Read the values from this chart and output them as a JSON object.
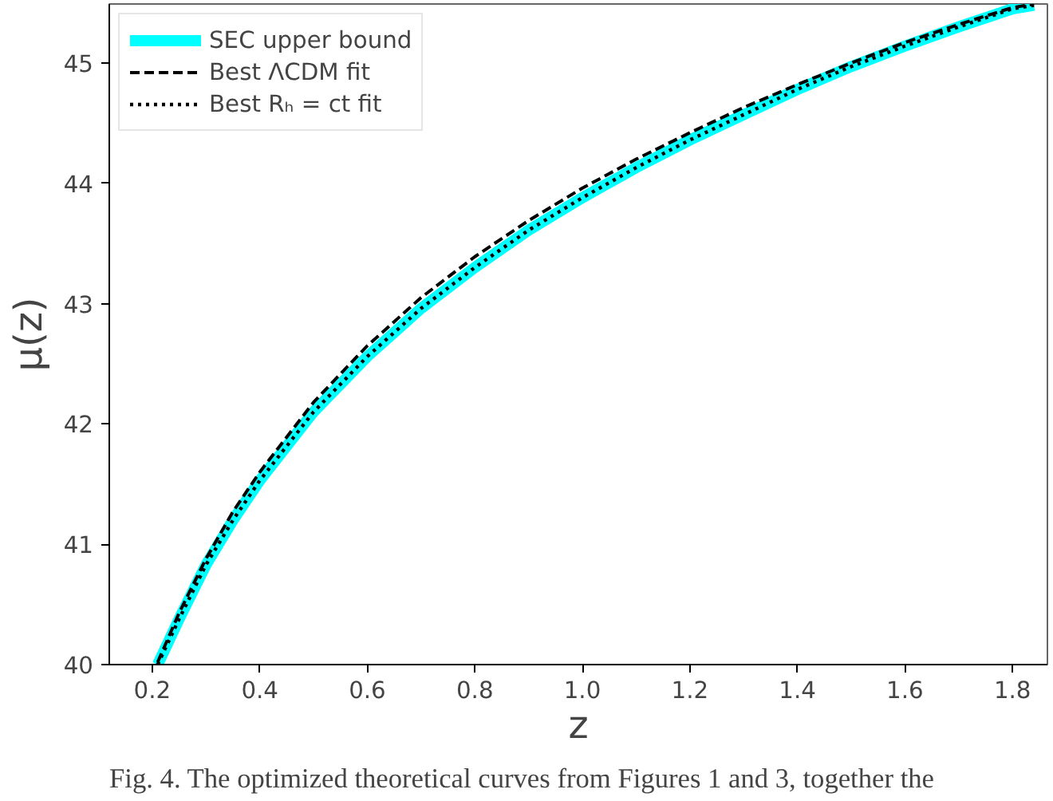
{
  "chart_data": {
    "type": "line",
    "xlabel": "z",
    "ylabel": "μ(z)",
    "xlim": [
      0.12,
      1.865
    ],
    "ylim": [
      40,
      45.49
    ],
    "xticks": [
      0.2,
      0.4,
      0.6,
      0.8,
      {
        "value": 1,
        "label": "1.0"
      },
      1.2,
      1.4,
      1.6,
      1.8
    ],
    "yticks": [
      40,
      41,
      42,
      43,
      44,
      45
    ],
    "grid": false,
    "legend": "top left",
    "annotations": [
      "Fig. 4. The optimized theoretical curves from Figures 1 and 3, together the"
    ],
    "series": [
      {
        "name": "SEC upper bound",
        "color": "#00ffff",
        "line_style": "solid",
        "x": [
          0.21,
          0.25,
          0.3,
          0.35,
          0.4,
          0.5,
          0.6,
          0.7,
          0.8,
          0.9,
          1.0,
          1.1,
          1.2,
          1.3,
          1.4,
          1.5,
          1.6,
          1.7,
          1.8,
          1.84
        ],
        "values": [
          40.0,
          40.38,
          40.83,
          41.2,
          41.53,
          42.1,
          42.56,
          42.96,
          43.3,
          43.61,
          43.88,
          44.13,
          44.36,
          44.57,
          44.78,
          44.97,
          45.14,
          45.3,
          45.45,
          45.48
        ]
      },
      {
        "name": "Best ΛCDM fit",
        "color": "#000000",
        "line_style": "dashed",
        "x": [
          0.21,
          0.25,
          0.3,
          0.35,
          0.4,
          0.5,
          0.6,
          0.7,
          0.8,
          0.9,
          1.0,
          1.1,
          1.2,
          1.3,
          1.4,
          1.5,
          1.6,
          1.7,
          1.8,
          1.84
        ],
        "values": [
          40.02,
          40.43,
          40.88,
          41.27,
          41.6,
          42.18,
          42.65,
          43.05,
          43.39,
          43.69,
          43.96,
          44.2,
          44.42,
          44.63,
          44.82,
          45.0,
          45.17,
          45.32,
          45.46,
          45.49
        ]
      },
      {
        "name": "Best Rₕ = ct fit",
        "color": "#000000",
        "line_style": "dotted",
        "x": [
          0.21,
          0.25,
          0.3,
          0.35,
          0.4,
          0.5,
          0.6,
          0.7,
          0.8,
          0.9,
          1.0,
          1.1,
          1.2,
          1.3,
          1.4,
          1.5,
          1.6,
          1.7,
          1.8,
          1.84
        ],
        "values": [
          40.0,
          40.38,
          40.83,
          41.2,
          41.53,
          42.1,
          42.56,
          42.96,
          43.3,
          43.61,
          43.88,
          44.13,
          44.36,
          44.57,
          44.78,
          44.97,
          45.14,
          45.3,
          45.45,
          45.48
        ]
      }
    ]
  }
}
